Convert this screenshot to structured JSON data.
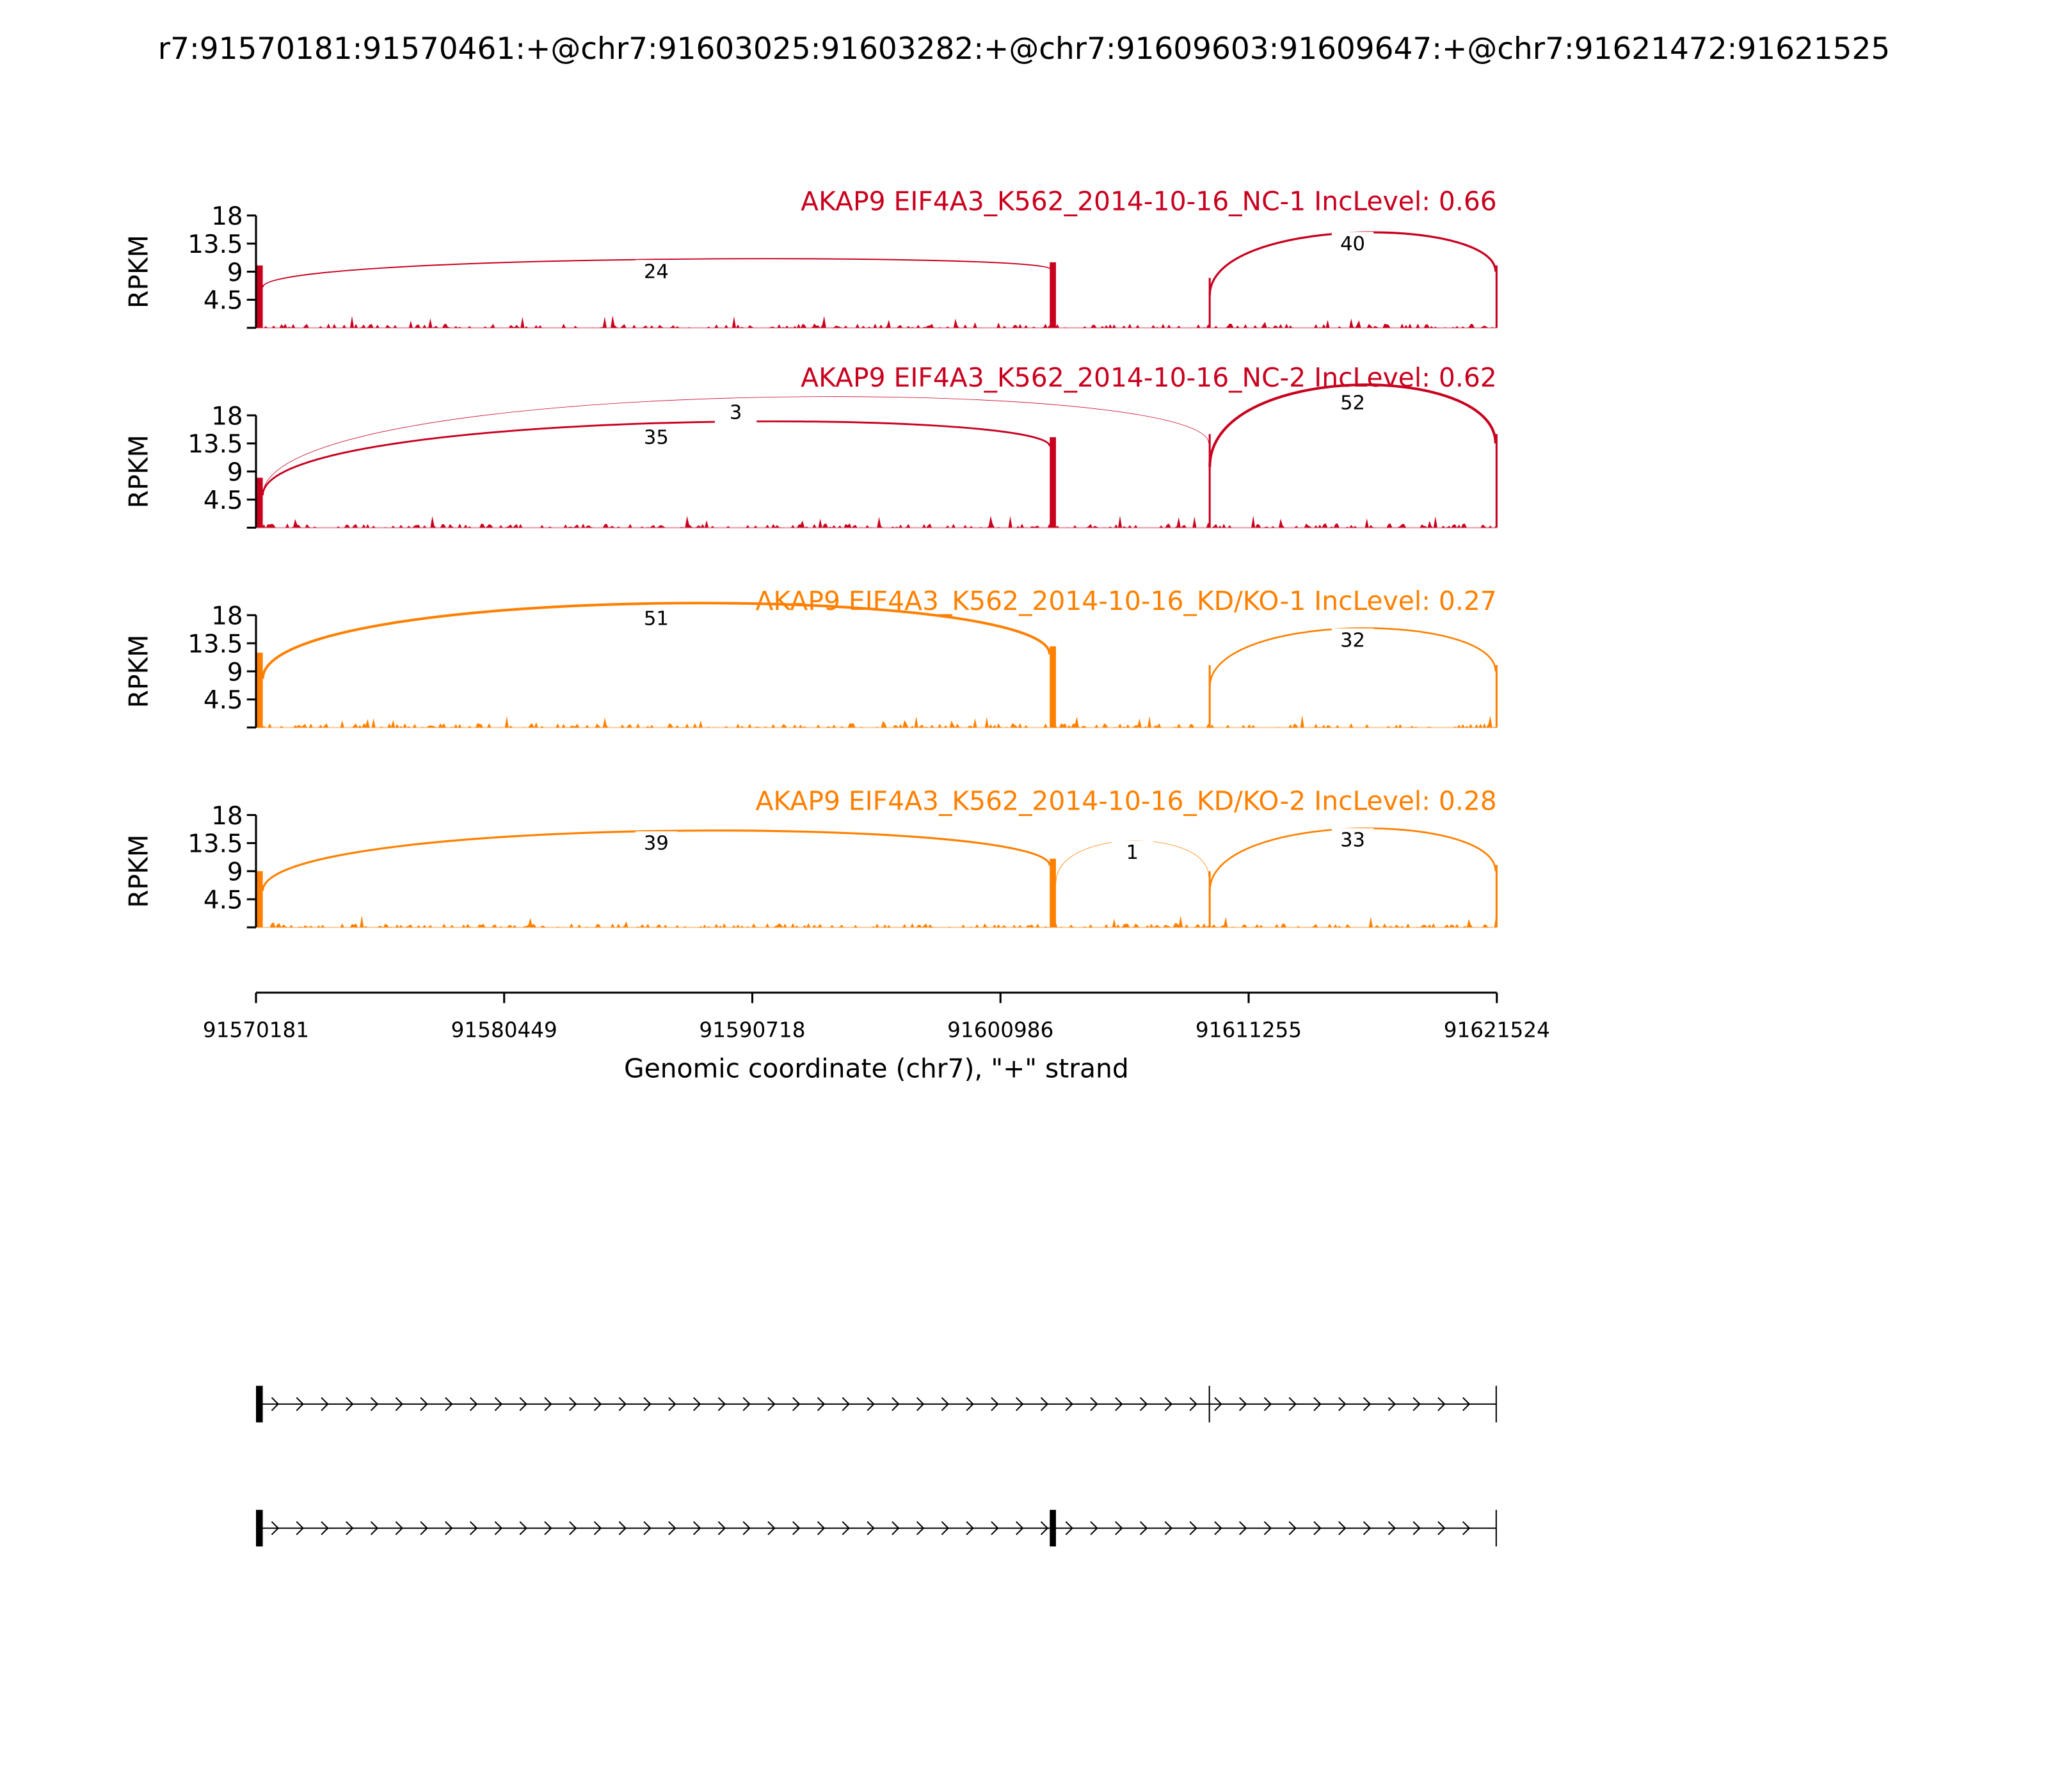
{
  "chart_data": {
    "type": "sashimi",
    "title": "r7:91570181:91570461:+@chr7:91603025:91603282:+@chr7:91609603:91609647:+@chr7:91621472:91621525",
    "xlabel": "Genomic coordinate (chr7), \"+\" strand",
    "ylabel": "RPKM",
    "xlim": [
      91570181,
      91621524
    ],
    "xticks": [
      "91570181",
      "91580449",
      "91590718",
      "91600986",
      "91611255",
      "91621524"
    ],
    "xtick_values": [
      91570181,
      91580449,
      91590718,
      91600986,
      91611255,
      91621524
    ],
    "ylim": [
      0,
      18
    ],
    "yticks": [
      "18",
      "13.5",
      "9",
      "4.5"
    ],
    "ytick_values": [
      18,
      13.5,
      9,
      4.5
    ],
    "exons": [
      [
        91570181,
        91570461
      ],
      [
        91603025,
        91603282
      ],
      [
        91609603,
        91609647
      ],
      [
        91621472,
        91621525
      ]
    ],
    "colors": {
      "nc": "#c8001e",
      "kd": "#ff8000"
    },
    "panels": [
      {
        "label": "AKAP9 EIF4A3_K562_2014-10-16_NC-1 IncLevel: 0.66",
        "color": "#c8001e",
        "exon_coverage": [
          10,
          10.5,
          8,
          10
        ],
        "junctions": [
          {
            "from": 0,
            "to": 1,
            "count": "24",
            "peak": 9
          },
          {
            "from": 2,
            "to": 3,
            "count": "40",
            "peak": 13.5
          }
        ]
      },
      {
        "label": "AKAP9 EIF4A3_K562_2014-10-16_NC-2 IncLevel: 0.62",
        "color": "#c8001e",
        "exon_coverage": [
          8,
          14.5,
          15,
          15
        ],
        "junctions": [
          {
            "from": 0,
            "to": 1,
            "count": "35",
            "peak": 14.5
          },
          {
            "from": 0,
            "to": 2,
            "count": "3",
            "peak": 18.5
          },
          {
            "from": 2,
            "to": 3,
            "count": "52",
            "peak": 20
          }
        ]
      },
      {
        "label": "AKAP9 EIF4A3_K562_2014-10-16_KD/KO-1 IncLevel: 0.27",
        "color": "#ff8000",
        "exon_coverage": [
          12,
          13,
          10,
          10
        ],
        "junctions": [
          {
            "from": 0,
            "to": 1,
            "count": "51",
            "peak": 17.5
          },
          {
            "from": 2,
            "to": 3,
            "count": "32",
            "peak": 14
          }
        ]
      },
      {
        "label": "AKAP9 EIF4A3_K562_2014-10-16_KD/KO-2 IncLevel: 0.28",
        "color": "#ff8000",
        "exon_coverage": [
          9,
          11,
          9,
          10
        ],
        "junctions": [
          {
            "from": 0,
            "to": 1,
            "count": "39",
            "peak": 13.5
          },
          {
            "from": 1,
            "to": 2,
            "count": "1",
            "peak": 12
          },
          {
            "from": 2,
            "to": 3,
            "count": "33",
            "peak": 14
          }
        ]
      }
    ],
    "transcripts": [
      {
        "exons": [
          0,
          2,
          3
        ],
        "strand": "+"
      },
      {
        "exons": [
          0,
          1,
          3
        ],
        "strand": "+"
      }
    ]
  }
}
